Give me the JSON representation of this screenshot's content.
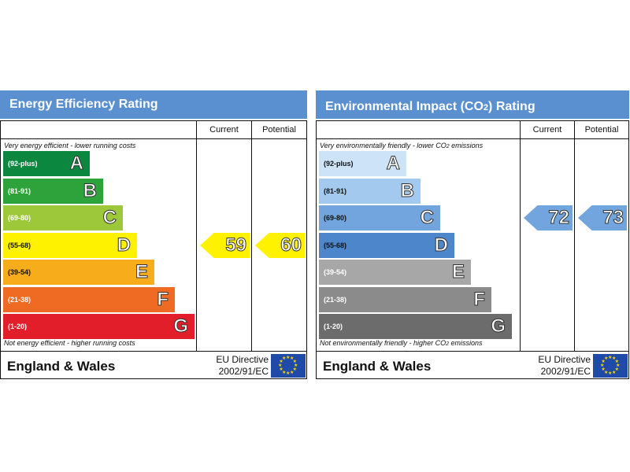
{
  "colors": {
    "header_bg": "#5a8fd0",
    "energy_bands": [
      "#0c8740",
      "#2ea23b",
      "#9cc83a",
      "#fff200",
      "#f7ad1b",
      "#ef6b23",
      "#e21e2a"
    ],
    "co2_bands": [
      "#cde3f7",
      "#a3c9ef",
      "#72a5dd",
      "#4e86cc",
      "#a7a7a7",
      "#8b8b8b",
      "#6c6c6c"
    ],
    "current_arrow_energy": "#fff200",
    "potential_arrow_energy": "#fff200",
    "current_arrow_co2": "#72a5dd",
    "potential_arrow_co2": "#72a5dd"
  },
  "chart_data": [
    {
      "type": "table",
      "title": "Energy Efficiency Rating",
      "columns": [
        "Current",
        "Potential"
      ],
      "top_note": "Very energy efficient - lower running costs",
      "bottom_note": "Not energy efficient - higher running costs",
      "bands": [
        {
          "range": "(92-plus)",
          "letter": "A"
        },
        {
          "range": "(81-91)",
          "letter": "B"
        },
        {
          "range": "(69-80)",
          "letter": "C"
        },
        {
          "range": "(55-68)",
          "letter": "D"
        },
        {
          "range": "(39-54)",
          "letter": "E"
        },
        {
          "range": "(21-38)",
          "letter": "F"
        },
        {
          "range": "(1-20)",
          "letter": "G"
        }
      ],
      "current": 59,
      "potential": 60,
      "region": "England & Wales",
      "directive_line1": "EU Directive",
      "directive_line2": "2002/91/EC"
    },
    {
      "type": "table",
      "title_main": "Environmental Impact (CO",
      "title_sub": "2",
      "title_end": ") Rating",
      "columns": [
        "Current",
        "Potential"
      ],
      "top_note_main": "Very environmentally friendly - lower CO",
      "top_note_sub": "2",
      "top_note_end": " emissions",
      "bottom_note_main": "Not environmentally friendly - higher CO",
      "bottom_note_sub": "2",
      "bottom_note_end": " emissions",
      "bands": [
        {
          "range": "(92-plus)",
          "letter": "A"
        },
        {
          "range": "(81-91)",
          "letter": "B"
        },
        {
          "range": "(69-80)",
          "letter": "C"
        },
        {
          "range": "(55-68)",
          "letter": "D"
        },
        {
          "range": "(39-54)",
          "letter": "E"
        },
        {
          "range": "(21-38)",
          "letter": "F"
        },
        {
          "range": "(1-20)",
          "letter": "G"
        }
      ],
      "current": 72,
      "potential": 73,
      "region": "England & Wales",
      "directive_line1": "EU Directive",
      "directive_line2": "2002/91/EC"
    }
  ]
}
